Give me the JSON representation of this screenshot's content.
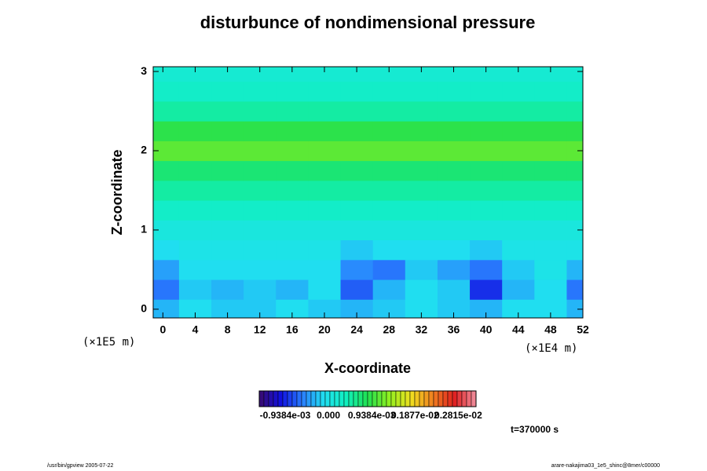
{
  "chart_data": {
    "type": "contour",
    "title": "disturbunce of nondimensional pressure",
    "x_label": "X-coordinate",
    "y_label": "Z-coordinate",
    "y_unit": "(×1E5 m)",
    "x_unit": "(×1E4 m)",
    "time_label": "t=370000 s",
    "footer_left": "/usr/bin/gpview 2005-07-22",
    "footer_right": "arare-nakajima03_1e5_shinc@8mer/c00000",
    "xlim": [
      -1.2,
      52
    ],
    "xticks": [
      0,
      4,
      8,
      12,
      16,
      20,
      24,
      28,
      32,
      36,
      40,
      44,
      48,
      52
    ],
    "ylim": [
      -0.11,
      3.06
    ],
    "yticks": [
      0,
      1,
      2,
      3
    ],
    "x": [
      0,
      4,
      8,
      12,
      16,
      20,
      24,
      28,
      32,
      36,
      40,
      44,
      48,
      52
    ],
    "y": [
      0,
      0.25,
      0.5,
      0.75,
      1,
      1.25,
      1.5,
      1.75,
      2,
      2.25,
      2.5,
      2.75,
      3
    ],
    "z": [
      [
        -0.0003,
        -0.0001,
        -0.0002,
        -0.0002,
        -0.0001,
        -0.0002,
        -0.0003,
        -0.0002,
        -0.0001,
        -0.0002,
        -0.0003,
        -0.0001,
        -0.0001,
        -0.0003
      ],
      [
        -0.0006,
        -0.0002,
        -0.0003,
        -0.0002,
        -0.0003,
        -0.0001,
        -0.0007,
        -0.0003,
        -0.0001,
        -0.0002,
        -0.0009,
        -0.0003,
        -0.0001,
        -0.0006
      ],
      [
        -0.0004,
        -0.0001,
        -0.0001,
        -0.0001,
        -0.0001,
        -0.0001,
        -0.0005,
        -0.0006,
        -0.0002,
        -0.0004,
        -0.0006,
        -0.0002,
        0,
        -0.0003
      ],
      [
        -0.0001,
        0,
        0,
        0,
        0,
        0,
        -0.0002,
        -0.0001,
        -0.0001,
        -0.0001,
        -0.0002,
        0,
        0,
        0
      ],
      [
        0.0001,
        0.0001,
        0.0001,
        0.0001,
        0.0001,
        0.0001,
        0.0001,
        0.0001,
        0.0001,
        0.0001,
        0.0001,
        0.0001,
        0.0001,
        0.0001
      ],
      [
        0.0003,
        0.0003,
        0.0003,
        0.0003,
        0.0003,
        0.0003,
        0.0003,
        0.0003,
        0.0003,
        0.0003,
        0.0003,
        0.0003,
        0.0003,
        0.0003
      ],
      [
        0.0005,
        0.0005,
        0.0005,
        0.0005,
        0.0005,
        0.0005,
        0.0005,
        0.0005,
        0.0005,
        0.0005,
        0.0005,
        0.0005,
        0.0005,
        0.0005
      ],
      [
        0.0007,
        0.0007,
        0.0007,
        0.0007,
        0.0007,
        0.0007,
        0.0007,
        0.0007,
        0.0007,
        0.0007,
        0.0007,
        0.0007,
        0.0007,
        0.0007
      ],
      [
        0.0011,
        0.0011,
        0.0011,
        0.0011,
        0.0011,
        0.0011,
        0.0011,
        0.0011,
        0.0011,
        0.0011,
        0.0011,
        0.0011,
        0.0011,
        0.0011
      ],
      [
        0.0009,
        0.0009,
        0.0009,
        0.0009,
        0.0009,
        0.0009,
        0.0009,
        0.0009,
        0.0009,
        0.0009,
        0.0009,
        0.0009,
        0.0009,
        0.0009
      ],
      [
        0.0005,
        0.0005,
        0.0005,
        0.0005,
        0.0005,
        0.0005,
        0.0005,
        0.0005,
        0.0005,
        0.0005,
        0.0005,
        0.0005,
        0.0005,
        0.0005
      ],
      [
        0.0003,
        0.0003,
        0.0003,
        0.0003,
        0.0003,
        0.0003,
        0.0003,
        0.0003,
        0.0003,
        0.0003,
        0.0003,
        0.0003,
        0.0003,
        0.0003
      ],
      [
        0.0002,
        0.0002,
        0.0002,
        0.0002,
        0.0002,
        0.0002,
        0.0002,
        0.0002,
        0.0002,
        0.0002,
        0.0002,
        0.0002,
        0.0002,
        0.0002
      ]
    ],
    "zlim": [
      -0.0015,
      0.0032
    ],
    "zticks": [
      {
        "value": -0.0009384,
        "label": "-0.9384e-03"
      },
      {
        "value": 0,
        "label": "0.000"
      },
      {
        "value": 0.0009384,
        "label": "0.9384e-03"
      },
      {
        "value": 0.001877,
        "label": "0.1877e-02"
      },
      {
        "value": 0.002815,
        "label": "0.2815e-02"
      }
    ],
    "colormap": [
      "#3a0a6e",
      "#1010e0",
      "#2a7fff",
      "#20e0f0",
      "#10f0c0",
      "#20e050",
      "#90f020",
      "#f0e020",
      "#f08020",
      "#e02020",
      "#f090a0"
    ]
  }
}
